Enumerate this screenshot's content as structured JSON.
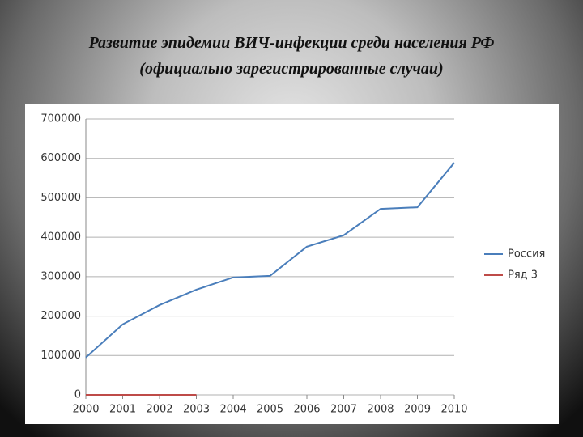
{
  "chart_data": {
    "type": "line",
    "title": "Развитие эпидемии ВИЧ-инфекции среди населения РФ",
    "subtitle": "(официально зарегистрированные случаи)",
    "categories": [
      "2000",
      "2001",
      "2002",
      "2003",
      "2004",
      "2005",
      "2006",
      "2007",
      "2008",
      "2009",
      "2010"
    ],
    "series": [
      {
        "name": "Россия",
        "color": "#4a7ebb",
        "values": [
          95000,
          179000,
          228000,
          267000,
          298000,
          302000,
          376000,
          405000,
          472000,
          476000,
          589000
        ]
      },
      {
        "name": "Ряд 3",
        "color": "#be4b48",
        "values": [
          0,
          0,
          0,
          0,
          null,
          null,
          null,
          null,
          null,
          null,
          null
        ]
      }
    ],
    "ylim": [
      0,
      700000
    ],
    "yticks": [
      0,
      100000,
      200000,
      300000,
      400000,
      500000,
      600000,
      700000
    ],
    "grid": true,
    "legend": "right"
  }
}
